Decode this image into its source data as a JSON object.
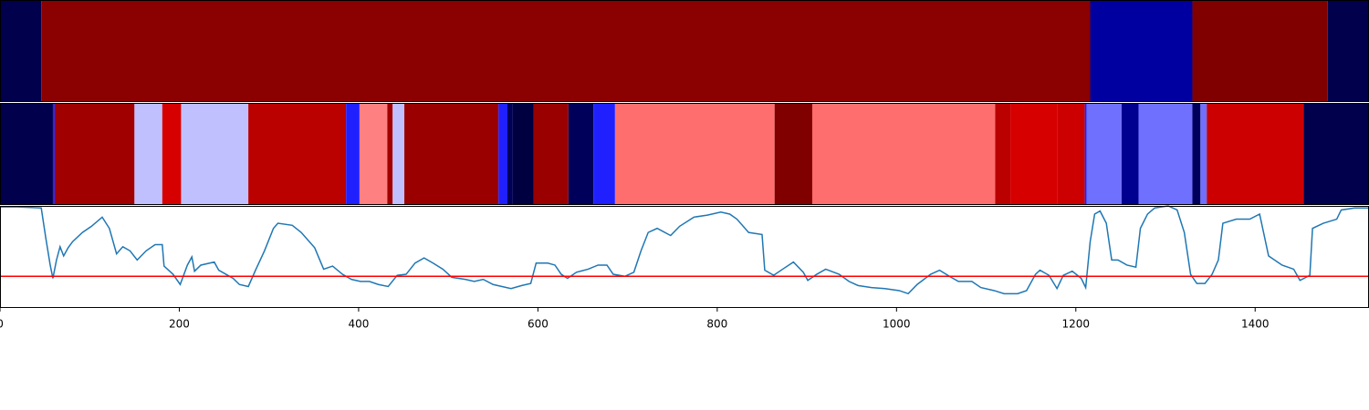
{
  "chart_data": [
    {
      "type": "segments",
      "xlim": [
        0,
        1527
      ],
      "bounds": [
        0,
        46,
        1216,
        1330,
        1481,
        1527
      ],
      "colors": [
        "#00004c",
        "#8b0000",
        "#0000a0",
        "#800000",
        "#00004c"
      ]
    },
    {
      "type": "segments",
      "xlim": [
        0,
        1527
      ],
      "bounds": [
        0,
        59,
        61,
        150,
        181,
        202,
        277,
        386,
        401,
        432,
        438,
        451,
        556,
        566,
        572,
        595,
        634,
        662,
        686,
        864,
        906,
        1110,
        1127,
        1179,
        1210,
        1212,
        1251,
        1270,
        1330,
        1339,
        1346,
        1454,
        1527
      ],
      "colors": [
        "#00004c",
        "#2020ff",
        "#a00000",
        "#c0c0ff",
        "#d60000",
        "#c0c0ff",
        "#bb0000",
        "#2020ff",
        "#ff8080",
        "#a00000",
        "#c0c0ff",
        "#9a0000",
        "#2020ff",
        "#00005a",
        "#000040",
        "#9a0000",
        "#00005a",
        "#2020ff",
        "#ff6e6e",
        "#800000",
        "#ff6e6e",
        "#bb0000",
        "#d60000",
        "#cc0000",
        "#2020ff",
        "#7070ff",
        "#000090",
        "#7070ff",
        "#00005a",
        "#7070ff",
        "#cc0000",
        "#00004c"
      ]
    },
    {
      "type": "line",
      "xlim": [
        0,
        1527
      ],
      "ylim": [
        0,
        1
      ],
      "xticks": [
        0,
        200,
        400,
        600,
        800,
        1000,
        1200,
        1400
      ],
      "hline": 0.31,
      "hline_color": "#ff0000",
      "series": [
        {
          "color": "#1f77b4",
          "x": [
            0,
            20,
            46,
            51,
            56,
            59,
            63,
            67,
            71,
            76,
            81,
            92,
            102,
            114,
            122,
            130,
            137,
            145,
            153,
            163,
            173,
            181,
            183,
            193,
            201,
            209,
            214,
            217,
            224,
            239,
            244,
            260,
            267,
            277,
            285,
            295,
            305,
            310,
            326,
            336,
            351,
            361,
            371,
            382,
            392,
            402,
            412,
            422,
            433,
            443,
            453,
            463,
            473,
            483,
            494,
            504,
            519,
            529,
            539,
            550,
            560,
            570,
            582,
            592,
            598,
            611,
            619,
            626,
            633,
            643,
            656,
            667,
            677,
            684,
            697,
            707,
            715,
            723,
            733,
            748,
            758,
            774,
            789,
            804,
            814,
            822,
            835,
            850,
            853,
            863,
            873,
            885,
            896,
            901,
            911,
            921,
            936,
            947,
            957,
            972,
            987,
            1003,
            1013,
            1023,
            1038,
            1048,
            1059,
            1069,
            1084,
            1094,
            1109,
            1120,
            1135,
            1145,
            1155,
            1160,
            1170,
            1179,
            1186,
            1196,
            1206,
            1211,
            1216,
            1221,
            1227,
            1234,
            1240,
            1247,
            1257,
            1267,
            1272,
            1280,
            1288,
            1303,
            1313,
            1321,
            1328,
            1335,
            1344,
            1352,
            1359,
            1364,
            1379,
            1394,
            1405,
            1415,
            1430,
            1443,
            1450,
            1461,
            1464,
            1476,
            1491,
            1496,
            1511,
            1527
          ],
          "values": [
            0.99,
            0.99,
            0.98,
            0.69,
            0.42,
            0.29,
            0.47,
            0.6,
            0.51,
            0.59,
            0.65,
            0.74,
            0.8,
            0.89,
            0.78,
            0.53,
            0.6,
            0.56,
            0.47,
            0.56,
            0.62,
            0.62,
            0.41,
            0.33,
            0.23,
            0.42,
            0.5,
            0.36,
            0.42,
            0.45,
            0.37,
            0.29,
            0.23,
            0.21,
            0.37,
            0.56,
            0.78,
            0.83,
            0.81,
            0.74,
            0.59,
            0.38,
            0.41,
            0.33,
            0.28,
            0.26,
            0.26,
            0.23,
            0.21,
            0.32,
            0.33,
            0.44,
            0.49,
            0.44,
            0.38,
            0.3,
            0.28,
            0.26,
            0.28,
            0.23,
            0.21,
            0.19,
            0.22,
            0.24,
            0.44,
            0.44,
            0.42,
            0.33,
            0.29,
            0.35,
            0.38,
            0.42,
            0.42,
            0.33,
            0.31,
            0.35,
            0.56,
            0.74,
            0.78,
            0.71,
            0.8,
            0.89,
            0.91,
            0.94,
            0.92,
            0.87,
            0.74,
            0.72,
            0.37,
            0.32,
            0.38,
            0.45,
            0.35,
            0.27,
            0.33,
            0.38,
            0.33,
            0.26,
            0.22,
            0.2,
            0.19,
            0.17,
            0.14,
            0.23,
            0.33,
            0.37,
            0.31,
            0.26,
            0.26,
            0.2,
            0.17,
            0.14,
            0.14,
            0.17,
            0.33,
            0.37,
            0.32,
            0.19,
            0.32,
            0.36,
            0.29,
            0.2,
            0.65,
            0.92,
            0.95,
            0.83,
            0.47,
            0.47,
            0.42,
            0.4,
            0.78,
            0.92,
            0.98,
            1.0,
            0.96,
            0.74,
            0.33,
            0.24,
            0.24,
            0.33,
            0.47,
            0.83,
            0.87,
            0.87,
            0.92,
            0.51,
            0.42,
            0.38,
            0.27,
            0.32,
            0.78,
            0.83,
            0.87,
            0.96,
            0.98,
            0.98
          ]
        }
      ]
    }
  ]
}
